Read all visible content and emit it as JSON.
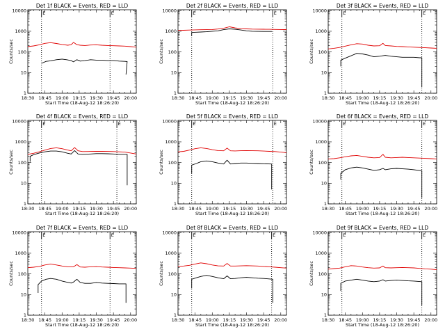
{
  "figure": {
    "time_range": [
      "18:30",
      "20:05"
    ],
    "x_ticks": [
      "18:30",
      "18:45",
      "19:00",
      "19:15",
      "19:30",
      "19:45",
      "20:00"
    ],
    "x_label": "Start Time (18-Aug-12 18:26:20)",
    "y_label": "Counts/sec",
    "y_ticks": [
      "1",
      "10",
      "100",
      "1000",
      "10000"
    ],
    "y_scale": "log",
    "ylim": [
      1,
      11000
    ],
    "edge_markers": [
      "E",
      "E"
    ],
    "colors": {
      "events": "#000000",
      "lld": "#e00000"
    }
  },
  "chart_data": [
    {
      "type": "line",
      "title": "Det 1f BLACK = Events, RED = LLD",
      "xlabel": "Start Time (18-Aug-12 18:26:20)",
      "ylabel": "Counts/sec",
      "y_scale": "log",
      "ylim": [
        1,
        11000
      ],
      "dotted_lines": [
        "18:42",
        "19:42"
      ],
      "series": [
        {
          "color": "#000000",
          "drop_end": "19:56",
          "drop_end_to": 8,
          "x": [
            "18:42",
            "18:46",
            "18:50",
            "18:55",
            "19:00",
            "19:04",
            "19:08",
            "19:10",
            "19:13",
            "19:16",
            "19:20",
            "19:25",
            "19:30",
            "19:35",
            "19:40",
            "19:45",
            "19:50",
            "19:55",
            "19:57"
          ],
          "y": [
            28,
            35,
            37,
            42,
            45,
            42,
            38,
            33,
            42,
            36,
            38,
            42,
            40,
            40,
            38,
            38,
            36,
            35,
            34
          ]
        },
        {
          "color": "#e00000",
          "x": [
            "18:30",
            "18:35",
            "18:40",
            "18:45",
            "18:50",
            "18:55",
            "19:00",
            "19:05",
            "19:08",
            "19:10",
            "19:13",
            "19:16",
            "19:20",
            "19:25",
            "19:30",
            "19:35",
            "19:40",
            "19:45",
            "19:50",
            "19:55",
            "20:00",
            "20:05"
          ],
          "y": [
            180,
            195,
            220,
            260,
            280,
            255,
            230,
            210,
            225,
            290,
            225,
            210,
            205,
            215,
            220,
            210,
            205,
            200,
            195,
            190,
            180,
            170
          ]
        }
      ]
    },
    {
      "type": "line",
      "title": "Det 2f BLACK = Events, RED = LLD",
      "xlabel": "Start Time (18-Aug-12 18:26:20)",
      "ylabel": "Counts/sec",
      "y_scale": "log",
      "ylim": [
        1,
        11000
      ],
      "dotted_lines": [
        "18:42",
        "19:53"
      ],
      "series": [
        {
          "color": "#000000",
          "rise_start": "18:42",
          "rise_from": 600,
          "drop_end": "19:52",
          "drop_end_to": 1000,
          "x": [
            "18:42",
            "18:46",
            "18:50",
            "18:55",
            "19:00",
            "19:05",
            "19:10",
            "19:15",
            "19:20",
            "19:25",
            "19:30",
            "19:35",
            "19:40",
            "19:45",
            "19:52"
          ],
          "y": [
            880,
            900,
            920,
            950,
            1000,
            1050,
            1200,
            1300,
            1250,
            1150,
            1050,
            1000,
            990,
            980,
            980
          ]
        },
        {
          "color": "#e00000",
          "x": [
            "18:30",
            "18:35",
            "18:40",
            "18:45",
            "18:50",
            "18:55",
            "19:00",
            "19:05",
            "19:10",
            "19:15",
            "19:20",
            "19:25",
            "19:30",
            "19:35",
            "19:40",
            "19:45",
            "19:50",
            "19:55",
            "20:00",
            "20:05"
          ],
          "y": [
            1100,
            1120,
            1140,
            1170,
            1190,
            1200,
            1220,
            1280,
            1400,
            1650,
            1450,
            1350,
            1300,
            1270,
            1260,
            1250,
            1240,
            1230,
            1220,
            1210
          ]
        }
      ]
    },
    {
      "type": "line",
      "title": "Det 3f BLACK = Events, RED = LLD",
      "xlabel": "Start Time (18-Aug-12 18:26:20)",
      "ylabel": "Counts/sec",
      "y_scale": "log",
      "ylim": [
        1,
        11000
      ],
      "dotted_lines": [
        "18:42",
        "19:52"
      ],
      "series": [
        {
          "color": "#000000",
          "rise_start": "18:41",
          "rise_from": 20,
          "drop_end": "19:52",
          "drop_end_to": 2,
          "x": [
            "18:41",
            "18:45",
            "18:50",
            "18:55",
            "19:00",
            "19:05",
            "19:10",
            "19:15",
            "19:20",
            "19:25",
            "19:30",
            "19:35",
            "19:40",
            "19:45",
            "19:50",
            "19:52"
          ],
          "y": [
            40,
            50,
            65,
            85,
            80,
            70,
            58,
            62,
            68,
            62,
            58,
            55,
            55,
            55,
            52,
            52
          ]
        },
        {
          "color": "#e00000",
          "x": [
            "18:30",
            "18:35",
            "18:40",
            "18:45",
            "18:50",
            "18:55",
            "19:00",
            "19:05",
            "19:10",
            "19:15",
            "19:18",
            "19:20",
            "19:25",
            "19:30",
            "19:35",
            "19:40",
            "19:45",
            "19:50",
            "19:55",
            "20:00",
            "20:05"
          ],
          "y": [
            140,
            150,
            165,
            190,
            220,
            250,
            240,
            210,
            195,
            200,
            260,
            205,
            195,
            185,
            180,
            175,
            170,
            165,
            160,
            155,
            150
          ]
        }
      ]
    },
    {
      "type": "line",
      "title": "Det 4f BLACK = Events, RED = LLD",
      "xlabel": "Start Time (18-Aug-12 18:26:20)",
      "ylabel": "Counts/sec",
      "y_scale": "log",
      "ylim": [
        1,
        11000
      ],
      "dotted_lines": [
        "18:42",
        "19:48"
      ],
      "series": [
        {
          "color": "#000000",
          "rise_start": "18:32",
          "rise_from": 110,
          "drop_end": "19:57",
          "drop_end_to": 8,
          "x": [
            "18:32",
            "18:35",
            "18:40",
            "18:45",
            "18:50",
            "18:55",
            "19:00",
            "19:05",
            "19:08",
            "19:11",
            "19:14",
            "19:18",
            "19:25",
            "19:30",
            "19:35",
            "19:40",
            "19:45",
            "19:50",
            "19:57"
          ],
          "y": [
            200,
            240,
            290,
            330,
            360,
            360,
            330,
            280,
            260,
            380,
            260,
            250,
            260,
            270,
            270,
            265,
            260,
            250,
            250
          ]
        },
        {
          "color": "#e00000",
          "x": [
            "18:30",
            "18:35",
            "18:40",
            "18:45",
            "18:50",
            "18:55",
            "19:00",
            "19:05",
            "19:08",
            "19:11",
            "19:14",
            "19:18",
            "19:25",
            "19:30",
            "19:35",
            "19:40",
            "19:45",
            "19:50",
            "19:55",
            "20:00",
            "20:05"
          ],
          "y": [
            250,
            280,
            330,
            400,
            480,
            520,
            470,
            400,
            370,
            530,
            370,
            340,
            345,
            350,
            350,
            345,
            340,
            330,
            320,
            290,
            260
          ]
        }
      ]
    },
    {
      "type": "line",
      "title": "Det 5f BLACK = Events, RED = LLD",
      "xlabel": "Start Time (18-Aug-12 18:26:20)",
      "ylabel": "Counts/sec",
      "y_scale": "log",
      "ylim": [
        1,
        11000
      ],
      "dotted_lines": [
        "18:42",
        "19:53"
      ],
      "series": [
        {
          "color": "#000000",
          "rise_start": "18:42",
          "rise_from": 30,
          "drop_end": "19:52",
          "drop_end_to": 5,
          "x": [
            "18:42",
            "18:46",
            "18:50",
            "18:55",
            "19:00",
            "19:05",
            "19:10",
            "19:13",
            "19:16",
            "19:20",
            "19:25",
            "19:30",
            "19:35",
            "19:40",
            "19:45",
            "19:52"
          ],
          "y": [
            75,
            90,
            110,
            120,
            110,
            95,
            85,
            130,
            85,
            90,
            95,
            95,
            92,
            90,
            88,
            85
          ]
        },
        {
          "color": "#e00000",
          "x": [
            "18:30",
            "18:35",
            "18:40",
            "18:45",
            "18:50",
            "18:55",
            "19:00",
            "19:05",
            "19:10",
            "19:13",
            "19:16",
            "19:20",
            "19:25",
            "19:30",
            "19:35",
            "19:40",
            "19:45",
            "19:50",
            "19:55",
            "20:00",
            "20:05"
          ],
          "y": [
            330,
            350,
            400,
            470,
            520,
            480,
            420,
            380,
            370,
            500,
            370,
            365,
            375,
            380,
            375,
            370,
            360,
            350,
            340,
            320,
            300
          ]
        }
      ]
    },
    {
      "type": "line",
      "title": "Det 6f BLACK = Events, RED = LLD",
      "xlabel": "Start Time (18-Aug-12 18:26:20)",
      "ylabel": "Counts/sec",
      "y_scale": "log",
      "ylim": [
        1,
        11000
      ],
      "dotted_lines": [
        "18:42",
        "19:52"
      ],
      "series": [
        {
          "color": "#000000",
          "rise_start": "18:41",
          "rise_from": 15,
          "drop_end": "19:52",
          "drop_end_to": 2,
          "x": [
            "18:41",
            "18:45",
            "18:50",
            "18:55",
            "19:00",
            "19:05",
            "19:10",
            "19:15",
            "19:18",
            "19:20",
            "19:25",
            "19:30",
            "19:35",
            "19:40",
            "19:45",
            "19:52"
          ],
          "y": [
            30,
            45,
            55,
            60,
            55,
            48,
            42,
            45,
            52,
            45,
            50,
            52,
            50,
            48,
            45,
            40
          ]
        },
        {
          "color": "#e00000",
          "x": [
            "18:30",
            "18:35",
            "18:40",
            "18:45",
            "18:50",
            "18:55",
            "19:00",
            "19:05",
            "19:10",
            "19:15",
            "19:18",
            "19:20",
            "19:25",
            "19:30",
            "19:35",
            "19:40",
            "19:45",
            "19:50",
            "19:55",
            "20:00",
            "20:05"
          ],
          "y": [
            150,
            155,
            170,
            190,
            210,
            220,
            200,
            180,
            170,
            175,
            250,
            180,
            170,
            175,
            180,
            175,
            170,
            165,
            160,
            155,
            150
          ]
        }
      ]
    },
    {
      "type": "line",
      "title": "Det 7f BLACK = Events, RED = LLD",
      "xlabel": "Start Time (18-Aug-12 18:26:20)",
      "ylabel": "Counts/sec",
      "y_scale": "log",
      "ylim": [
        1,
        11000
      ],
      "dotted_lines": [
        "18:42",
        "19:42"
      ],
      "series": [
        {
          "color": "#000000",
          "rise_start": "18:39",
          "rise_from": 12,
          "drop_end": "19:56",
          "drop_end_to": 4,
          "x": [
            "18:39",
            "18:42",
            "18:46",
            "18:50",
            "18:55",
            "19:00",
            "19:04",
            "19:08",
            "19:10",
            "19:13",
            "19:16",
            "19:20",
            "19:25",
            "19:30",
            "19:35",
            "19:40",
            "19:45",
            "19:50",
            "19:56"
          ],
          "y": [
            30,
            45,
            55,
            60,
            55,
            45,
            40,
            36,
            40,
            55,
            38,
            35,
            35,
            38,
            36,
            35,
            34,
            33,
            33
          ]
        },
        {
          "color": "#e00000",
          "x": [
            "18:30",
            "18:35",
            "18:40",
            "18:45",
            "18:50",
            "18:55",
            "19:00",
            "19:05",
            "19:10",
            "19:13",
            "19:16",
            "19:20",
            "19:25",
            "19:30",
            "19:35",
            "19:40",
            "19:45",
            "19:50",
            "19:55",
            "20:00",
            "20:05"
          ],
          "y": [
            200,
            210,
            230,
            270,
            300,
            270,
            240,
            220,
            220,
            280,
            215,
            210,
            220,
            225,
            215,
            210,
            205,
            200,
            195,
            190,
            185
          ]
        }
      ]
    },
    {
      "type": "line",
      "title": "Det 8f BLACK = Events, RED = LLD",
      "xlabel": "Start Time (18-Aug-12 18:26:20)",
      "ylabel": "Counts/sec",
      "y_scale": "log",
      "ylim": [
        1,
        11000
      ],
      "dotted_lines": [
        "18:42",
        "19:52"
      ],
      "series": [
        {
          "color": "#000000",
          "rise_start": "18:42",
          "rise_from": 20,
          "drop_end": "19:53",
          "drop_end_to": 4,
          "x": [
            "18:42",
            "18:46",
            "18:50",
            "18:55",
            "19:00",
            "19:05",
            "19:10",
            "19:13",
            "19:16",
            "19:20",
            "19:25",
            "19:30",
            "19:35",
            "19:40",
            "19:45",
            "19:53"
          ],
          "y": [
            55,
            65,
            75,
            85,
            75,
            65,
            58,
            80,
            58,
            60,
            65,
            68,
            65,
            62,
            60,
            55
          ]
        },
        {
          "color": "#e00000",
          "x": [
            "18:30",
            "18:35",
            "18:40",
            "18:45",
            "18:50",
            "18:55",
            "19:00",
            "19:05",
            "19:10",
            "19:13",
            "19:16",
            "19:20",
            "19:25",
            "19:30",
            "19:35",
            "19:40",
            "19:45",
            "19:50",
            "19:55",
            "20:00",
            "20:05"
          ],
          "y": [
            230,
            240,
            260,
            300,
            340,
            310,
            270,
            245,
            240,
            320,
            240,
            240,
            245,
            250,
            245,
            240,
            230,
            220,
            210,
            200,
            190
          ]
        }
      ]
    },
    {
      "type": "line",
      "title": "Det 9f BLACK = Events, RED = LLD",
      "xlabel": "Start Time (18-Aug-12 18:26:20)",
      "ylabel": "Counts/sec",
      "y_scale": "log",
      "ylim": [
        1,
        11000
      ],
      "dotted_lines": [
        "18:42",
        "19:52"
      ],
      "series": [
        {
          "color": "#000000",
          "rise_start": "18:41",
          "rise_from": 15,
          "drop_end": "19:52",
          "drop_end_to": 3,
          "x": [
            "18:41",
            "18:45",
            "18:50",
            "18:55",
            "19:00",
            "19:05",
            "19:10",
            "19:15",
            "19:18",
            "19:20",
            "19:25",
            "19:30",
            "19:35",
            "19:40",
            "19:45",
            "19:52"
          ],
          "y": [
            35,
            45,
            50,
            55,
            50,
            45,
            42,
            45,
            52,
            45,
            48,
            50,
            48,
            46,
            45,
            42
          ]
        },
        {
          "color": "#e00000",
          "x": [
            "18:30",
            "18:35",
            "18:40",
            "18:45",
            "18:50",
            "18:55",
            "19:00",
            "19:05",
            "19:10",
            "19:15",
            "19:18",
            "19:20",
            "19:25",
            "19:30",
            "19:35",
            "19:40",
            "19:45",
            "19:50",
            "19:55",
            "20:00",
            "20:05"
          ],
          "y": [
            170,
            180,
            190,
            220,
            250,
            240,
            215,
            200,
            190,
            195,
            240,
            200,
            195,
            200,
            205,
            200,
            195,
            185,
            175,
            170,
            160
          ]
        }
      ]
    }
  ]
}
